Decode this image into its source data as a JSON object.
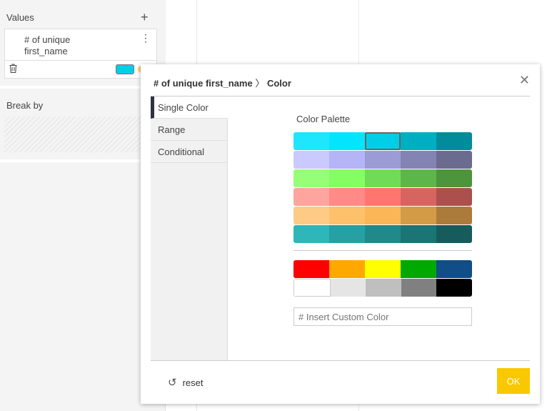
{
  "left_panel": {
    "values_label": "Values",
    "value_item": {
      "line1": "# of unique",
      "line2": "first_name",
      "color": "#00cee6"
    },
    "break_by_label": "Break by"
  },
  "popup": {
    "title_bold": "# of unique first_name",
    "title_sep": "〉",
    "title_rest": "Color",
    "tabs": [
      "Single Color",
      "Range",
      "Conditional"
    ],
    "active_tab": "Single Color",
    "palette_label": "Color Palette",
    "palette": [
      [
        "#1ee6ff",
        "#05e4ff",
        "#00cee6",
        "#00aec3",
        "#008c9b"
      ],
      [
        "#cacaff",
        "#b4b4f6",
        "#9b9bd6",
        "#8383b4",
        "#6b6b8f"
      ],
      [
        "#97ff77",
        "#84fe62",
        "#70db57",
        "#5db64a",
        "#4d953b"
      ],
      [
        "#ffa5a0",
        "#ff8a86",
        "#ff756f",
        "#d7655f",
        "#ab504d"
      ],
      [
        "#fecb86",
        "#fdc16b",
        "#fab657",
        "#d49b47",
        "#ab7b3b"
      ],
      [
        "#2eb6b9",
        "#26a0a3",
        "#21898a",
        "#1c7474",
        "#175b5d"
      ]
    ],
    "selected_color": "#00cee6",
    "basic_colors": [
      [
        "#ff0000",
        "#ffa800",
        "#ffff00",
        "#00a900",
        "#114d87"
      ],
      [
        "#ffffff",
        "#e5e5e5",
        "#bfbfbf",
        "#808080",
        "#000000"
      ]
    ],
    "custom_placeholder": "# Insert Custom Color",
    "reset_label": "reset",
    "ok_label": "OK"
  }
}
